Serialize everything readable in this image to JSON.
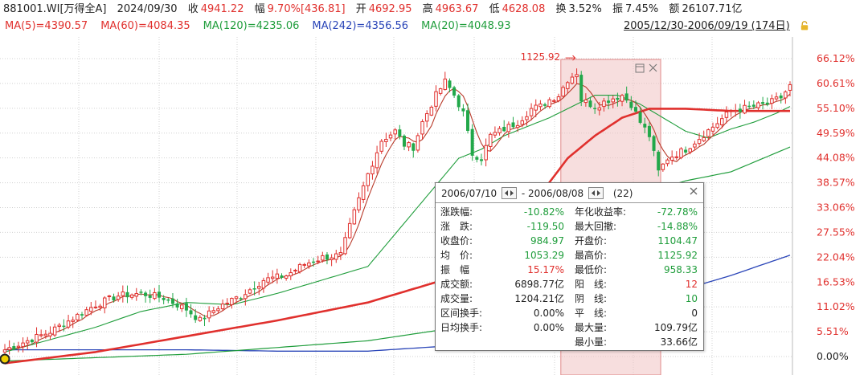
{
  "header": {
    "code": "881001.WI[万得全A]",
    "date": "2024/09/30",
    "close_label": "收",
    "close_value": "4941.22",
    "change_label": "幅",
    "change_value": "9.70%[436.81]",
    "open_label": "开",
    "open_value": "4692.95",
    "high_label": "高",
    "high_value": "4963.67",
    "low_label": "低",
    "low_value": "4628.08",
    "turnover_label": "换",
    "turnover_value": "3.52%",
    "amplitude_label": "振",
    "amplitude_value": "7.45%",
    "amount_label": "额",
    "amount_value": "26107.71亿"
  },
  "ma_legend": [
    {
      "text": "MA(5)=4390.57",
      "color": "#e0302d"
    },
    {
      "text": "MA(60)=4084.35",
      "color": "#e0302d"
    },
    {
      "text": "MA(120)=4235.06",
      "color": "#1f9d3b"
    },
    {
      "text": "MA(242)=4356.56",
      "color": "#2a45b8"
    },
    {
      "text": "MA(20)=4048.93",
      "color": "#1f9d3b"
    }
  ],
  "range_label": "2005/12/30-2006/09/19 (174日)",
  "chart_data": {
    "type": "candlestick",
    "y_axis_labels": [
      "66.12%",
      "60.61%",
      "55.10%",
      "49.59%",
      "44.08%",
      "38.57%",
      "33.06%",
      "27.55%",
      "22.04%",
      "16.53%",
      "11.02%",
      "5.51%",
      "0.00%"
    ],
    "y_axis_values": [
      66.12,
      60.61,
      55.1,
      49.59,
      44.08,
      38.57,
      33.06,
      27.55,
      22.04,
      16.53,
      11.02,
      5.51,
      0.0
    ],
    "ylim": [
      -1.0,
      70.5
    ],
    "bar_count": 174,
    "annotation_max": {
      "text": "1125.92",
      "bar": 126
    },
    "highlight": {
      "start_bar": 123,
      "end_bar": 144
    },
    "colors": {
      "up": "#e0302d",
      "down": "#22a84a",
      "ma5": "#b83a2a",
      "ma20": "#1f9d3b",
      "ma60": "#e0302d",
      "ma120": "#1f9d3b",
      "ma242": "#2a45b8",
      "grid": "#d0d0d0",
      "shade": "#f1c2c2"
    },
    "anchors_close_pct": [
      [
        0,
        1.5
      ],
      [
        5,
        3.5
      ],
      [
        10,
        5.5
      ],
      [
        15,
        8.5
      ],
      [
        20,
        11.5
      ],
      [
        25,
        13.5
      ],
      [
        30,
        14.0
      ],
      [
        35,
        13.0
      ],
      [
        40,
        10.5
      ],
      [
        43,
        8.0
      ],
      [
        47,
        11.0
      ],
      [
        52,
        13.5
      ],
      [
        57,
        17.0
      ],
      [
        62,
        18.0
      ],
      [
        66,
        20.5
      ],
      [
        70,
        22.0
      ],
      [
        74,
        22.5
      ],
      [
        77,
        32.0
      ],
      [
        80,
        40.5
      ],
      [
        83,
        48.0
      ],
      [
        86,
        50.0
      ],
      [
        88,
        47.0
      ],
      [
        90,
        46.5
      ],
      [
        92,
        52.0
      ],
      [
        95,
        58.0
      ],
      [
        97,
        61.0
      ],
      [
        99,
        58.0
      ],
      [
        101,
        54.0
      ],
      [
        103,
        45.0
      ],
      [
        105,
        44.0
      ],
      [
        107,
        49.0
      ],
      [
        110,
        50.5
      ],
      [
        113,
        52.0
      ],
      [
        116,
        55.0
      ],
      [
        118,
        55.5
      ],
      [
        120,
        57.0
      ],
      [
        122,
        58.0
      ],
      [
        124,
        61.5
      ],
      [
        126,
        63.0
      ],
      [
        127,
        57.0
      ],
      [
        130,
        55.5
      ],
      [
        133,
        57.0
      ],
      [
        136,
        58.0
      ],
      [
        138,
        56.0
      ],
      [
        140,
        52.0
      ],
      [
        142,
        49.0
      ],
      [
        143,
        45.0
      ],
      [
        144,
        41.0
      ],
      [
        146,
        44.0
      ],
      [
        150,
        46.0
      ],
      [
        153,
        48.5
      ],
      [
        156,
        51.0
      ],
      [
        160,
        54.5
      ],
      [
        165,
        55.5
      ],
      [
        168,
        56.0
      ],
      [
        171,
        57.5
      ],
      [
        173,
        60.0
      ]
    ],
    "anchors_ma20_pct": [
      [
        0,
        1.0
      ],
      [
        20,
        6.5
      ],
      [
        30,
        10.0
      ],
      [
        40,
        12.0
      ],
      [
        50,
        11.5
      ],
      [
        60,
        14.0
      ],
      [
        70,
        17.0
      ],
      [
        80,
        20.0
      ],
      [
        90,
        32.0
      ],
      [
        100,
        44.0
      ],
      [
        105,
        46.0
      ],
      [
        110,
        49.0
      ],
      [
        120,
        53.0
      ],
      [
        126,
        56.0
      ],
      [
        130,
        58.0
      ],
      [
        135,
        58.0
      ],
      [
        140,
        56.0
      ],
      [
        145,
        53.0
      ],
      [
        150,
        50.0
      ],
      [
        155,
        48.5
      ],
      [
        160,
        50.5
      ],
      [
        165,
        52.0
      ],
      [
        170,
        54.0
      ],
      [
        173,
        55.5
      ]
    ],
    "anchors_ma60_pct": [
      [
        0,
        -1.5
      ],
      [
        20,
        1.0
      ],
      [
        40,
        4.5
      ],
      [
        60,
        8.0
      ],
      [
        80,
        12.0
      ],
      [
        100,
        18.0
      ],
      [
        110,
        27.0
      ],
      [
        118,
        36.0
      ],
      [
        124,
        44.0
      ],
      [
        130,
        49.0
      ],
      [
        136,
        53.0
      ],
      [
        142,
        55.0
      ],
      [
        150,
        55.0
      ],
      [
        160,
        54.5
      ],
      [
        170,
        54.5
      ],
      [
        173,
        54.5
      ]
    ],
    "anchors_ma120_pct": [
      [
        0,
        -1.0
      ],
      [
        40,
        0.5
      ],
      [
        80,
        3.5
      ],
      [
        100,
        6.5
      ],
      [
        110,
        13.0
      ],
      [
        120,
        23.0
      ],
      [
        130,
        31.0
      ],
      [
        140,
        36.0
      ],
      [
        150,
        39.0
      ],
      [
        160,
        41.0
      ],
      [
        173,
        46.5
      ]
    ],
    "anchors_ma242_pct": [
      [
        0,
        1.5
      ],
      [
        40,
        1.5
      ],
      [
        60,
        1.2
      ],
      [
        80,
        1.2
      ],
      [
        100,
        2.5
      ],
      [
        110,
        4.5
      ],
      [
        120,
        7.5
      ],
      [
        130,
        10.0
      ],
      [
        140,
        12.5
      ],
      [
        150,
        15.0
      ],
      [
        160,
        18.0
      ],
      [
        173,
        22.5
      ]
    ]
  },
  "tooltip": {
    "start_date": "2006/07/10",
    "end_date": "2006/08/08",
    "count": "(22)",
    "left_rows": [
      {
        "label": "涨跌幅:",
        "value": "-10.82%",
        "color": "g"
      },
      {
        "label": "涨　跌:",
        "value": "-119.50",
        "color": "g"
      },
      {
        "label": "收盘价:",
        "value": "984.97",
        "color": "g"
      },
      {
        "label": "均　价:",
        "value": "1053.29",
        "color": "g"
      },
      {
        "label": "振　幅",
        "value": "15.17%",
        "color": "r"
      },
      {
        "label": "成交额:",
        "value": "6898.77亿",
        "color": "b"
      },
      {
        "label": "成交量:",
        "value": "1204.21亿",
        "color": "b"
      },
      {
        "label": "区间换手:",
        "value": "0.00%",
        "color": "b"
      },
      {
        "label": "日均换手:",
        "value": "0.00%",
        "color": "b"
      }
    ],
    "right_rows": [
      {
        "label": "年化收益率:",
        "value": "-72.78%",
        "color": "g"
      },
      {
        "label": "最大回撤:",
        "value": "-14.88%",
        "color": "g"
      },
      {
        "label": "开盘价:",
        "value": "1104.47",
        "color": "g"
      },
      {
        "label": "最高价:",
        "value": "1125.92",
        "color": "g"
      },
      {
        "label": "最低价:",
        "value": "958.33",
        "color": "g"
      },
      {
        "label": "阳　线:",
        "value": "12",
        "color": "r"
      },
      {
        "label": "阴　线:",
        "value": "10",
        "color": "g"
      },
      {
        "label": "平　线:",
        "value": "0",
        "color": "b"
      },
      {
        "label": "最大量:",
        "value": "109.79亿",
        "color": "b"
      },
      {
        "label": "最小量:",
        "value": "33.66亿",
        "color": "b"
      }
    ]
  }
}
